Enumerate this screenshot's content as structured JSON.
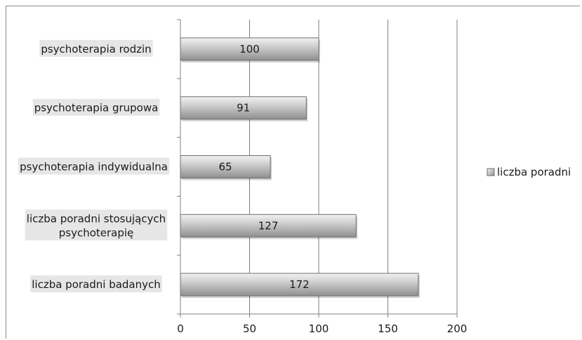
{
  "chart_data": {
    "type": "bar",
    "orientation": "horizontal",
    "categories": [
      "liczba poradni badanych",
      "liczba poradni stosujących psychoterapię",
      "psychoterapia indywidualna",
      "psychoterapia grupowa",
      "psychoterapia rodzin"
    ],
    "category_lines": [
      [
        "liczba poradni badanych"
      ],
      [
        "liczba poradni stosujących",
        "psychoterapię"
      ],
      [
        "psychoterapia indywidualna"
      ],
      [
        "psychoterapia grupowa"
      ],
      [
        "psychoterapia rodzin"
      ]
    ],
    "series": [
      {
        "name": "liczba poradni",
        "values": [
          172,
          127,
          65,
          91,
          100
        ]
      }
    ],
    "data_labels": [
      "172",
      "127",
      "65",
      "91",
      "100"
    ],
    "xticks": [
      "0",
      "50",
      "100",
      "150",
      "200"
    ],
    "xlim": [
      0,
      200
    ],
    "grid": true,
    "legend": "right",
    "legend_label": "liczba poradni",
    "colors": {
      "bar_top": "#f2f2f2",
      "bar_mid": "#c8c8c8",
      "bar_bottom": "#8f8f8f",
      "bar_edge": "#6e6e6e",
      "label_bg": "#e6e6e6",
      "grid": "#808080",
      "axis": "#808080"
    }
  }
}
